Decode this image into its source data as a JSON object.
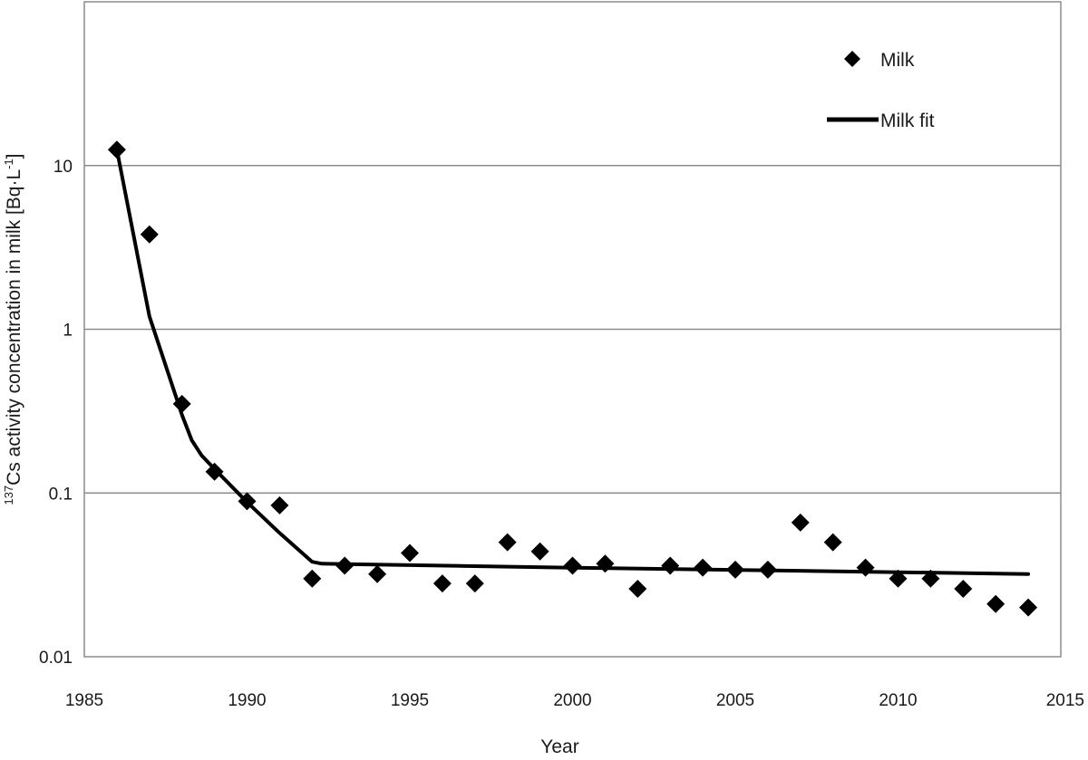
{
  "chart_data": {
    "type": "scatter",
    "xlabel": "Year",
    "ylabel_prefix": "137",
    "ylabel_main": "Cs activity concentration in milk [Bq·L",
    "ylabel_exp": "-1",
    "ylabel_suffix": "]",
    "x_scale": "linear",
    "y_scale": "log",
    "xlim": [
      1985,
      2015
    ],
    "ylim": [
      0.01,
      100
    ],
    "x_ticks": [
      1985,
      1990,
      1995,
      2000,
      2005,
      2010,
      2015
    ],
    "y_ticks": [
      0.01,
      0.1,
      1,
      10
    ],
    "x_tick_labels": [
      "1985",
      "1990",
      "1995",
      "2000",
      "2005",
      "2010",
      "2015"
    ],
    "y_tick_labels": [
      "0.01",
      "0.1",
      "1",
      "10"
    ],
    "grid": "horizontal",
    "legend_position": "top-right",
    "series": [
      {
        "name": "Milk",
        "kind": "markers",
        "marker": "diamond",
        "color": "#000000",
        "x": [
          1986,
          1987,
          1988,
          1989,
          1990,
          1991,
          1992,
          1993,
          1994,
          1995,
          1996,
          1997,
          1998,
          1999,
          2000,
          2001,
          2002,
          2003,
          2004,
          2005,
          2006,
          2007,
          2008,
          2009,
          2010,
          2011,
          2012,
          2013,
          2014
        ],
        "y": [
          12.5,
          3.8,
          0.35,
          0.135,
          0.089,
          0.084,
          0.03,
          0.036,
          0.032,
          0.043,
          0.028,
          0.028,
          0.05,
          0.044,
          0.036,
          0.037,
          0.026,
          0.036,
          0.035,
          0.034,
          0.034,
          0.066,
          0.05,
          0.035,
          0.03,
          0.03,
          0.026,
          0.021,
          0.02
        ]
      },
      {
        "name": "Milk fit",
        "kind": "line",
        "color": "#000000",
        "x": [
          1986,
          1987,
          1988,
          1988.3,
          1988.6,
          1989,
          1990,
          1991,
          1992,
          1992.3,
          2000,
          2014
        ],
        "y": [
          12.5,
          1.2,
          0.3,
          0.21,
          0.17,
          0.14,
          0.088,
          0.057,
          0.038,
          0.037,
          0.035,
          0.032
        ]
      }
    ]
  }
}
